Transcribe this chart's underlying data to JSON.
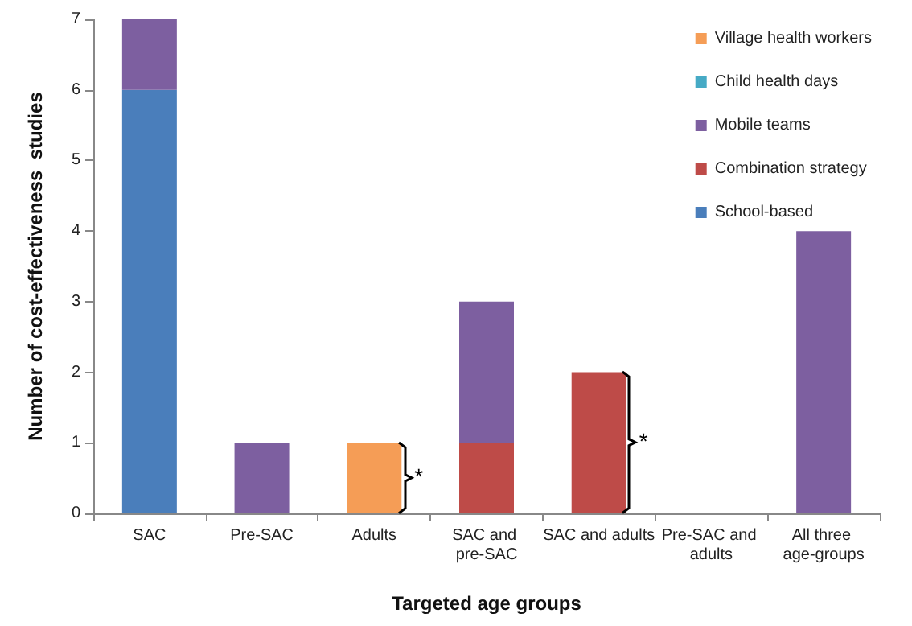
{
  "chart_data": {
    "type": "bar",
    "stacked": true,
    "xlabel": "Targeted age groups",
    "ylabel": "Number of cost-effectiveness  studies",
    "categories": [
      "SAC",
      "Pre-SAC",
      "Adults",
      "SAC and pre-SAC",
      "SAC and adults",
      "Pre-SAC and adults",
      "All three age-groups"
    ],
    "series": [
      {
        "name": "School-based",
        "color": "#4a7ebb",
        "values": [
          6,
          0,
          0,
          0,
          0,
          0,
          0
        ]
      },
      {
        "name": "Combination strategy",
        "color": "#be4b48",
        "values": [
          0,
          0,
          0,
          1,
          2,
          0,
          0
        ]
      },
      {
        "name": "Mobile teams",
        "color": "#7d5fa0",
        "values": [
          1,
          1,
          0,
          2,
          0,
          0,
          4
        ]
      },
      {
        "name": "Child health days",
        "color": "#46aac5",
        "values": [
          0,
          0,
          0,
          0,
          0,
          0,
          0
        ]
      },
      {
        "name": "Village health workers",
        "color": "#f59d56",
        "values": [
          0,
          0,
          1,
          0,
          0,
          0,
          0
        ]
      }
    ],
    "ylim": [
      0,
      7
    ],
    "yticks": [
      0,
      1,
      2,
      3,
      4,
      5,
      6,
      7
    ],
    "grid": false,
    "legend": "top right",
    "annotations": [
      "*",
      "*"
    ]
  }
}
